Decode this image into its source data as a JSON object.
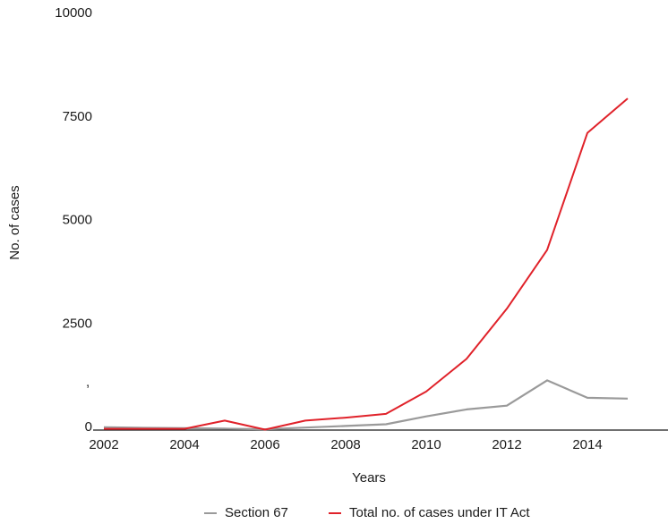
{
  "chart_data": {
    "type": "line",
    "title": "",
    "xlabel": "Years",
    "ylabel": "No. of cases",
    "x_ticks": [
      "2002",
      "2004",
      "2006",
      "2008",
      "2010",
      "2012",
      "2014"
    ],
    "y_ticks": [
      "0",
      "2500",
      "5000",
      "7500",
      "10000"
    ],
    "xlim": [
      2002,
      2016
    ],
    "ylim": [
      0,
      10000
    ],
    "stray_mark": ",",
    "grid": false,
    "legend_position": "bottom",
    "x": [
      2002,
      2003,
      2004,
      2005,
      2006,
      2007,
      2008,
      2009,
      2010,
      2011,
      2012,
      2013,
      2014,
      2015
    ],
    "series": [
      {
        "name": "Section 67",
        "color": "#9a9a9a",
        "values": [
          70,
          55,
          45,
          35,
          20,
          60,
          100,
          140,
          330,
          500,
          590,
          1200,
          780,
          760
        ]
      },
      {
        "name": "Total no. of cases under IT Act",
        "color": "#e0222a",
        "values": [
          30,
          30,
          30,
          230,
          10,
          230,
          300,
          390,
          930,
          1720,
          2930,
          4350,
          7180,
          8010
        ]
      }
    ]
  }
}
